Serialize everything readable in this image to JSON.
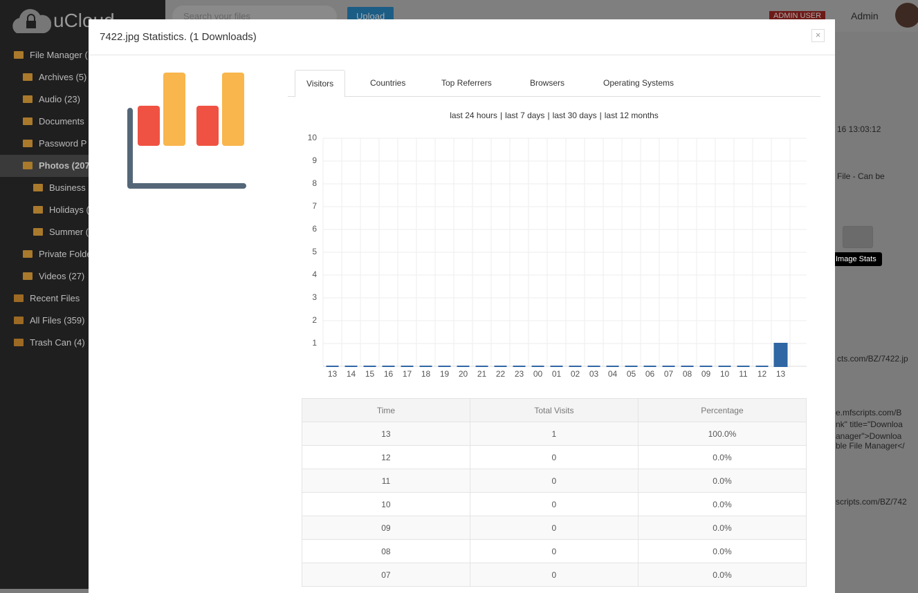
{
  "sidebar": {
    "logo": "uCloud",
    "items": [
      "File Manager (",
      "Archives (5)",
      "Audio (23)",
      "Documents",
      "Password P",
      "Photos (207",
      "Business",
      "Holidays (",
      "Summer (",
      "Private Folde",
      "Videos (27)",
      "Recent Files",
      "All Files (359)",
      "Trash Can (4)"
    ]
  },
  "topbar": {
    "search_placeholder": "Search your files",
    "upload": "Upload",
    "badge": "ADMIN USER",
    "user": "Admin"
  },
  "background_texts": [
    "16 13:03:12",
    "File - Can be",
    "cts.com/BZ/7422.jp",
    "e.mfscripts.com/B",
    "nk\" title=\"Downloa",
    "anager\">Downloa",
    "ble File Manager</",
    "scripts.com/BZ/742"
  ],
  "tooltip": "Image Stats",
  "modal": {
    "title": "7422.jpg Statistics. (1 Downloads)",
    "close": "×",
    "tabs": [
      "Visitors",
      "Countries",
      "Top Referrers",
      "Browsers",
      "Operating Systems"
    ],
    "ranges": [
      "last 24 hours",
      "last 7 days",
      "last 30 days",
      "last 12 months"
    ],
    "separator": "|",
    "table": {
      "headers": [
        "Time",
        "Total Visits",
        "Percentage"
      ],
      "rows": [
        [
          "13",
          "1",
          "100.0%"
        ],
        [
          "12",
          "0",
          "0.0%"
        ],
        [
          "11",
          "0",
          "0.0%"
        ],
        [
          "10",
          "0",
          "0.0%"
        ],
        [
          "09",
          "0",
          "0.0%"
        ],
        [
          "08",
          "0",
          "0.0%"
        ],
        [
          "07",
          "0",
          "0.0%"
        ]
      ]
    }
  },
  "chart_data": {
    "type": "bar",
    "categories": [
      "13",
      "14",
      "15",
      "16",
      "17",
      "18",
      "19",
      "20",
      "21",
      "22",
      "23",
      "00",
      "01",
      "02",
      "03",
      "04",
      "05",
      "06",
      "07",
      "08",
      "09",
      "10",
      "11",
      "12",
      "13"
    ],
    "values": [
      0,
      0,
      0,
      0,
      0,
      0,
      0,
      0,
      0,
      0,
      0,
      0,
      0,
      0,
      0,
      0,
      0,
      0,
      0,
      0,
      0,
      0,
      0,
      0,
      1
    ],
    "color": "#2f66a3",
    "ylim": [
      0,
      10
    ],
    "yticks": [
      1,
      2,
      3,
      4,
      5,
      6,
      7,
      8,
      9,
      10
    ],
    "grid": true
  }
}
